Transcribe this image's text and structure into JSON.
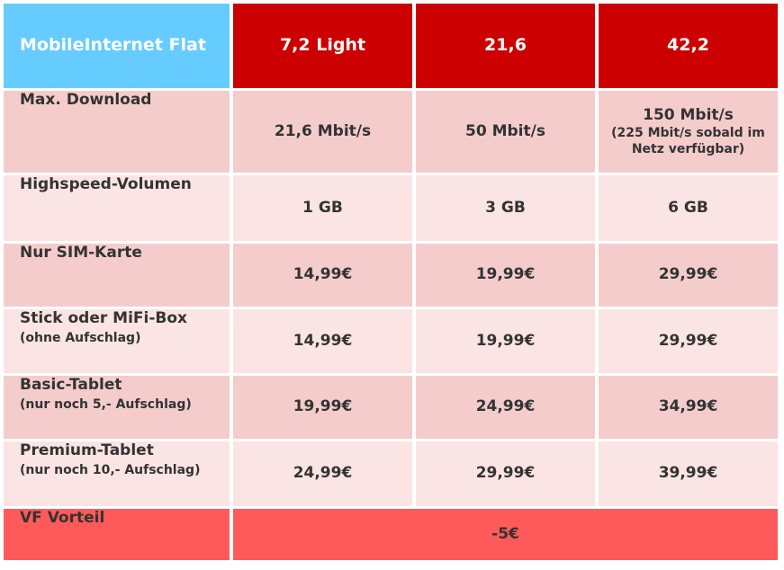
{
  "header": {
    "title": "MobileInternet Flat",
    "plans": [
      "7,2 Light",
      "21,6",
      "42,2"
    ]
  },
  "rows": [
    {
      "label": "Max. Download",
      "sublabel": "",
      "values": [
        "21,6 Mbit/s",
        "50 Mbit/s",
        "150 Mbit/s"
      ],
      "note": "(225 Mbit/s sobald im Netz verfügbar)"
    },
    {
      "label": "Highspeed-Volumen",
      "sublabel": "",
      "values": [
        "1 GB",
        "3 GB",
        "6 GB"
      ]
    },
    {
      "label": "Nur SIM-Karte",
      "sublabel": "",
      "values": [
        "14,99€",
        "19,99€",
        "29,99€"
      ]
    },
    {
      "label": "Stick oder MiFi-Box",
      "sublabel": "(ohne Aufschlag)",
      "values": [
        "14,99€",
        "19,99€",
        "29,99€"
      ]
    },
    {
      "label": "Basic-Tablet",
      "sublabel": "(nur noch 5,- Aufschlag)",
      "values": [
        "19,99€",
        "24,99€",
        "34,99€"
      ]
    },
    {
      "label": "Premium-Tablet",
      "sublabel": "(nur noch 10,- Aufschlag)",
      "values": [
        "24,99€",
        "29,99€",
        "39,99€"
      ]
    }
  ],
  "footer": {
    "label": "VF Vorteil",
    "value": "-5€"
  },
  "colors": {
    "header_title": "#66ccff",
    "header_plan": "#cc0000",
    "row_dark": "#f4cccc",
    "row_light": "#fbe4e4",
    "footer": "#ff5a5a"
  }
}
